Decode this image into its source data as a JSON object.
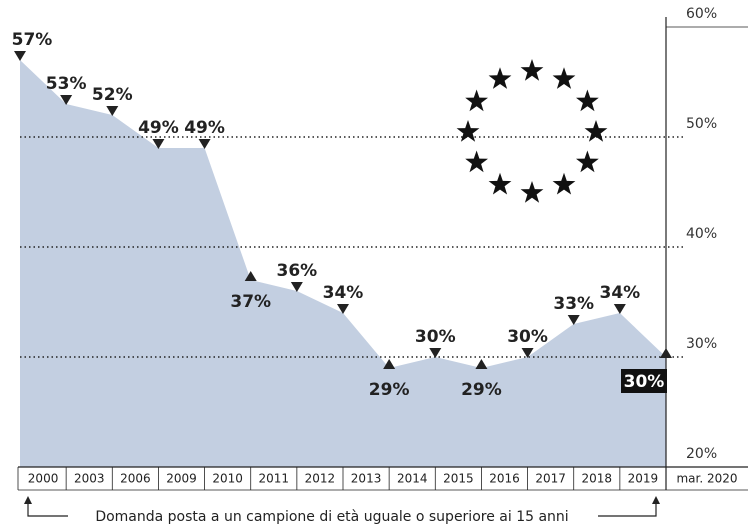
{
  "chart_data": {
    "type": "area",
    "categories": [
      "2000",
      "2003",
      "2006",
      "2009",
      "2010",
      "2011",
      "2012",
      "2013",
      "2014",
      "2015",
      "2016",
      "2017",
      "2018",
      "2019",
      "mar. 2020"
    ],
    "values": [
      57,
      53,
      52,
      49,
      49,
      37,
      36,
      34,
      29,
      30,
      29,
      30,
      33,
      34,
      30
    ],
    "value_labels": [
      "57%",
      "53%",
      "52%",
      "49%",
      "49%",
      "37%",
      "36%",
      "34%",
      "29%",
      "30%",
      "29%",
      "30%",
      "33%",
      "34%",
      "30%"
    ],
    "color": "#c3cfe1",
    "ylim": [
      20,
      60
    ],
    "yticks": [
      {
        "value": 20,
        "label": "20%"
      },
      {
        "value": 30,
        "label": "30%"
      },
      {
        "value": 40,
        "label": "40%"
      },
      {
        "value": 50,
        "label": "50%"
      },
      {
        "value": 60,
        "label": "60%"
      }
    ],
    "grid": true,
    "annotation": "Domanda posta a un campione di età uguale o superiore ai 15 anni"
  }
}
